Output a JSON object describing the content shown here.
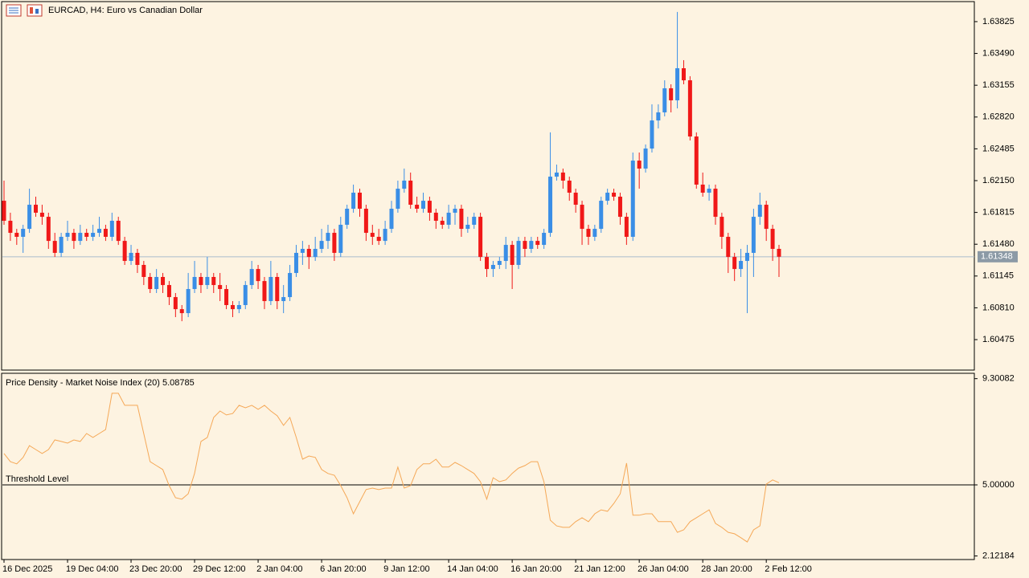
{
  "chart_data": [
    {
      "type": "candlestick",
      "title": "EURCAD, H4:  Euro vs Canadian Dollar",
      "up_color": "#3a8ee6",
      "down_color": "#f01818",
      "categories": [
        "16 Dec 2025",
        null,
        null,
        null,
        null,
        null,
        null,
        null,
        null,
        null,
        "19 Dec 04:00",
        null,
        null,
        null,
        null,
        null,
        null,
        null,
        null,
        null,
        "23 Dec 20:00",
        null,
        null,
        null,
        null,
        null,
        null,
        null,
        null,
        null,
        "29 Dec 12:00",
        null,
        null,
        null,
        null,
        null,
        null,
        null,
        null,
        null,
        "2 Jan 04:00",
        null,
        null,
        null,
        null,
        null,
        null,
        null,
        null,
        null,
        "6 Jan 20:00",
        null,
        null,
        null,
        null,
        null,
        null,
        null,
        null,
        null,
        "9 Jan 12:00",
        null,
        null,
        null,
        null,
        null,
        null,
        null,
        null,
        null,
        "14 Jan 04:00",
        null,
        null,
        null,
        null,
        null,
        null,
        null,
        null,
        null,
        "16 Jan 20:00",
        null,
        null,
        null,
        null,
        null,
        null,
        null,
        null,
        null,
        "21 Jan 12:00",
        null,
        null,
        null,
        null,
        null,
        null,
        null,
        null,
        null,
        "26 Jan 04:00",
        null,
        null,
        null,
        null,
        null,
        null,
        null,
        null,
        null,
        "28 Jan 20:00",
        null,
        null,
        null,
        null,
        null,
        null,
        null,
        null,
        null,
        "2 Feb 12:00",
        null,
        null
      ],
      "open": [
        1.61938,
        1.61727,
        1.616,
        1.61558,
        1.61642,
        1.61896,
        1.61812,
        1.61769,
        1.61515,
        1.61389,
        1.61558,
        1.616,
        1.61515,
        1.616,
        1.61558,
        1.616,
        1.61642,
        1.61558,
        1.61727,
        1.61515,
        1.61304,
        1.61389,
        1.61262,
        1.61135,
        1.61008,
        1.61135,
        1.6105,
        1.60923,
        1.60796,
        1.60754,
        1.61008,
        1.61135,
        1.6105,
        1.61135,
        1.6105,
        1.61008,
        1.60839,
        1.60796,
        1.60839,
        1.6105,
        1.61219,
        1.61092,
        1.60881,
        1.61135,
        1.60881,
        1.60923,
        1.61177,
        1.61389,
        1.61431,
        1.61346,
        1.61431,
        1.61515,
        1.616,
        1.61389,
        1.61685,
        1.61854,
        1.62023,
        1.61854,
        1.616,
        1.61558,
        1.61515,
        1.61642,
        1.61854,
        1.62065,
        1.6215,
        1.61896,
        1.61854,
        1.61938,
        1.61812,
        1.61727,
        1.61685,
        1.61812,
        1.61854,
        1.61642,
        1.61685,
        1.61769,
        1.61346,
        1.61219,
        1.61262,
        1.61304,
        1.61473,
        1.61262,
        1.61515,
        1.61431,
        1.61515,
        1.61473,
        1.616,
        1.62192,
        1.62235,
        1.6215,
        1.62023,
        1.61896,
        1.61642,
        1.61558,
        1.61642,
        1.61938,
        1.62023,
        1.61981,
        1.61769,
        1.61558,
        1.62361,
        1.62277,
        1.62488,
        1.62784,
        1.62869,
        1.63123,
        1.62996,
        1.63334,
        1.63207,
        1.62615,
        1.62108,
        1.62023,
        1.62065,
        1.61769,
        1.61558,
        1.61346,
        1.61219,
        1.61304,
        1.61389,
        1.61769,
        1.61896,
        1.61642,
        1.61431
      ],
      "high": [
        1.6215,
        1.61812,
        1.61642,
        1.61685,
        1.62065,
        1.61981,
        1.61896,
        1.61812,
        1.616,
        1.616,
        1.61727,
        1.61642,
        1.61685,
        1.61642,
        1.61685,
        1.61769,
        1.61685,
        1.61812,
        1.61769,
        1.61558,
        1.61473,
        1.61431,
        1.61304,
        1.61177,
        1.61219,
        1.61177,
        1.61092,
        1.60966,
        1.60839,
        1.61177,
        1.61304,
        1.61177,
        1.61346,
        1.61177,
        1.61177,
        1.6105,
        1.60881,
        1.60881,
        1.61092,
        1.61304,
        1.61262,
        1.61135,
        1.61304,
        1.61177,
        1.6105,
        1.61262,
        1.61473,
        1.61515,
        1.61473,
        1.61558,
        1.61642,
        1.61685,
        1.61642,
        1.61769,
        1.61896,
        1.62108,
        1.62065,
        1.61896,
        1.61685,
        1.61642,
        1.61727,
        1.61938,
        1.6215,
        1.62277,
        1.62235,
        1.61981,
        1.62023,
        1.61981,
        1.61854,
        1.61769,
        1.61896,
        1.61896,
        1.61896,
        1.61769,
        1.61812,
        1.61812,
        1.61389,
        1.61304,
        1.61346,
        1.61558,
        1.61515,
        1.61558,
        1.61558,
        1.61558,
        1.61558,
        1.61642,
        1.62658,
        1.62319,
        1.62277,
        1.62192,
        1.62065,
        1.61938,
        1.61685,
        1.61685,
        1.61981,
        1.62065,
        1.62065,
        1.62023,
        1.61812,
        1.62446,
        1.62446,
        1.62531,
        1.62954,
        1.62954,
        1.63207,
        1.63165,
        1.63927,
        1.63419,
        1.6325,
        1.62658,
        1.62235,
        1.62108,
        1.62108,
        1.61812,
        1.616,
        1.61389,
        1.61431,
        1.61473,
        1.61854,
        1.62023,
        1.61938,
        1.61685,
        1.61473
      ],
      "low": [
        1.61685,
        1.61515,
        1.61473,
        1.61389,
        1.616,
        1.61769,
        1.61685,
        1.61431,
        1.61346,
        1.61346,
        1.61515,
        1.61431,
        1.61473,
        1.61515,
        1.61515,
        1.61558,
        1.61515,
        1.61515,
        1.61473,
        1.61262,
        1.61262,
        1.61177,
        1.6105,
        1.60966,
        1.60966,
        1.60966,
        1.60839,
        1.60712,
        1.60669,
        1.60712,
        1.60966,
        1.60966,
        1.61008,
        1.60966,
        1.60881,
        1.60796,
        1.60712,
        1.60754,
        1.60796,
        1.61008,
        1.61008,
        1.60796,
        1.60839,
        1.60796,
        1.60754,
        1.60881,
        1.61135,
        1.61262,
        1.61219,
        1.61304,
        1.61389,
        1.61431,
        1.61304,
        1.61346,
        1.61642,
        1.61812,
        1.61769,
        1.61515,
        1.61473,
        1.61473,
        1.61473,
        1.616,
        1.61812,
        1.62023,
        1.61854,
        1.61812,
        1.61812,
        1.61727,
        1.61642,
        1.61642,
        1.61642,
        1.61685,
        1.61558,
        1.616,
        1.61642,
        1.61304,
        1.61135,
        1.61135,
        1.61219,
        1.61219,
        1.61008,
        1.61219,
        1.61346,
        1.61389,
        1.61431,
        1.61431,
        1.61558,
        1.6215,
        1.62065,
        1.61938,
        1.61812,
        1.61473,
        1.61473,
        1.61515,
        1.616,
        1.61896,
        1.61938,
        1.61685,
        1.61473,
        1.61515,
        1.62065,
        1.62235,
        1.62446,
        1.627,
        1.62827,
        1.62869,
        1.62911,
        1.63165,
        1.62573,
        1.62065,
        1.61981,
        1.61938,
        1.61685,
        1.61431,
        1.61177,
        1.61092,
        1.61135,
        1.60754,
        1.61135,
        1.61685,
        1.61515,
        1.61304,
        1.61135
      ],
      "close": [
        1.61727,
        1.616,
        1.61558,
        1.61642,
        1.61896,
        1.61812,
        1.61769,
        1.61515,
        1.61389,
        1.61558,
        1.616,
        1.61515,
        1.616,
        1.61558,
        1.616,
        1.61642,
        1.61558,
        1.61727,
        1.61515,
        1.61304,
        1.61389,
        1.61262,
        1.61135,
        1.61008,
        1.61135,
        1.6105,
        1.60923,
        1.60796,
        1.60754,
        1.61008,
        1.61135,
        1.6105,
        1.61135,
        1.6105,
        1.61008,
        1.60839,
        1.60796,
        1.60839,
        1.6105,
        1.61219,
        1.61092,
        1.60881,
        1.61135,
        1.60881,
        1.60923,
        1.61177,
        1.61389,
        1.61431,
        1.61346,
        1.61431,
        1.61515,
        1.616,
        1.61389,
        1.61685,
        1.61854,
        1.62023,
        1.61854,
        1.616,
        1.61558,
        1.61515,
        1.61642,
        1.61854,
        1.62065,
        1.6215,
        1.61896,
        1.61854,
        1.61938,
        1.61812,
        1.61727,
        1.61685,
        1.61812,
        1.61854,
        1.61642,
        1.61685,
        1.61769,
        1.61346,
        1.61219,
        1.61262,
        1.61304,
        1.61473,
        1.61262,
        1.61515,
        1.61431,
        1.61515,
        1.61473,
        1.616,
        1.62192,
        1.62235,
        1.6215,
        1.62023,
        1.61896,
        1.61642,
        1.61558,
        1.61642,
        1.61938,
        1.62023,
        1.61981,
        1.61769,
        1.61558,
        1.62361,
        1.62277,
        1.62488,
        1.62784,
        1.62869,
        1.63123,
        1.62996,
        1.63334,
        1.63207,
        1.62615,
        1.62108,
        1.62023,
        1.62065,
        1.61769,
        1.61558,
        1.61346,
        1.61219,
        1.61304,
        1.61389,
        1.61769,
        1.61896,
        1.61642,
        1.61431,
        1.61348
      ],
      "last_price": 1.61348,
      "last_price_color": "#8c9aa6",
      "ylim": [
        1.60154,
        1.64036
      ],
      "yticks": [
        1.63825,
        {
          "value": 1.6349,
          "label": "1.63490"
        },
        1.63155,
        {
          "value": 1.6282,
          "label": "1.62820"
        },
        1.62485,
        {
          "value": 1.6215,
          "label": "1.62150"
        },
        1.61815,
        {
          "value": 1.6148,
          "label": "1.61480"
        },
        1.61145,
        {
          "value": 1.6081,
          "label": "1.60810"
        },
        1.60475
      ]
    },
    {
      "type": "line",
      "title": "Price Density - Market Noise Index (20) 5.08785",
      "color": "#f5a857",
      "values": [
        6.27,
        5.94,
        5.85,
        6.11,
        6.59,
        6.43,
        6.27,
        6.43,
        6.82,
        6.76,
        6.69,
        6.82,
        6.76,
        7.08,
        6.92,
        7.08,
        7.24,
        8.71,
        8.71,
        8.22,
        8.22,
        8.22,
        7.08,
        5.94,
        5.78,
        5.62,
        4.97,
        4.48,
        4.42,
        4.64,
        5.46,
        6.76,
        6.92,
        7.73,
        7.99,
        7.83,
        7.89,
        8.22,
        8.12,
        8.22,
        8.06,
        8.22,
        7.99,
        7.8,
        7.41,
        7.73,
        6.92,
        6.04,
        6.17,
        6.11,
        5.62,
        5.46,
        5.39,
        4.97,
        4.48,
        3.83,
        4.32,
        4.81,
        4.87,
        4.81,
        4.87,
        4.87,
        5.72,
        4.87,
        4.97,
        5.62,
        5.85,
        5.85,
        6.04,
        5.72,
        5.72,
        5.91,
        5.78,
        5.62,
        5.46,
        5.13,
        4.42,
        5.29,
        5.13,
        5.2,
        5.46,
        5.68,
        5.78,
        5.94,
        5.94,
        5.13,
        3.57,
        3.34,
        3.28,
        3.28,
        3.51,
        3.67,
        3.51,
        3.83,
        3.99,
        3.93,
        4.25,
        4.64,
        5.88,
        3.77,
        3.77,
        3.83,
        3.83,
        3.51,
        3.51,
        3.51,
        3.08,
        3.18,
        3.51,
        3.67,
        3.83,
        3.99,
        3.44,
        3.28,
        3.08,
        3.02,
        2.86,
        2.69,
        3.18,
        3.34,
        5.03,
        5.2,
        5.08785
      ],
      "threshold": 5,
      "threshold_label": "Threshold Level",
      "ylim": [
        1.977,
        9.518
      ],
      "yticks": [
        9.30082,
        {
          "value": 5,
          "label": "5.00000"
        },
        2.12184
      ]
    }
  ]
}
